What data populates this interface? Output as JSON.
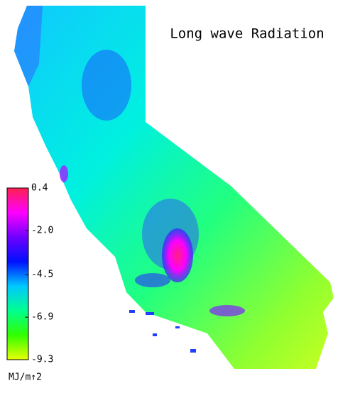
{
  "map": {
    "title": "Long wave Radiation",
    "colorbar": {
      "lim": [
        -9.3,
        0.4
      ],
      "ticks": [
        0.4,
        {
          "value": -2,
          "label": "-2.0"
        },
        -4.5,
        -6.9,
        -9.3
      ],
      "unit": "MJ/m↑2",
      "colors": [
        "#ff2050",
        "#ff00ff",
        "#7000ff",
        "#0010ff",
        "#00c8ff",
        "#00ff90",
        "#30ff00",
        "#e8ff00"
      ]
    }
  }
}
